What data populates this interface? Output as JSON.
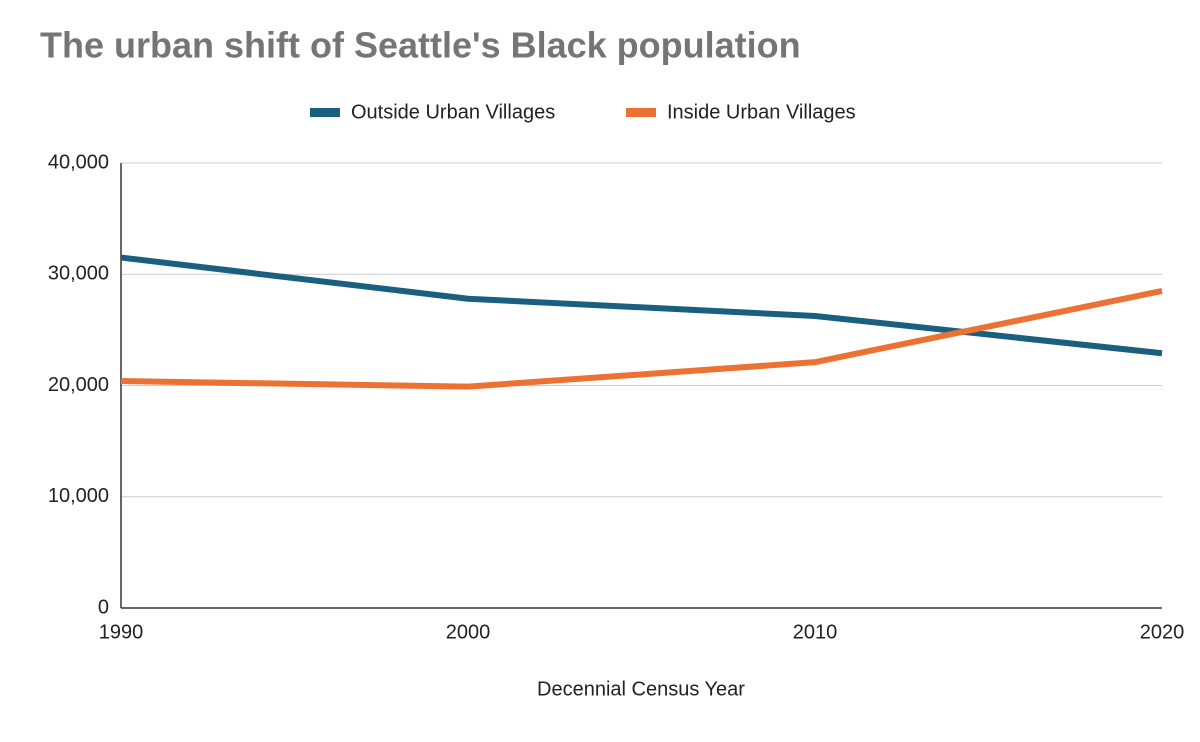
{
  "chart_data": {
    "type": "line",
    "title": "The urban shift of Seattle's Black population",
    "x_label": "Decennial Census Year",
    "x": [
      1990,
      2000,
      2010,
      2020
    ],
    "xlim": [
      1990,
      2020
    ],
    "xticks": [
      1990,
      2000,
      2010,
      2020
    ],
    "ylim": [
      0,
      40000
    ],
    "yticks": [
      0,
      {
        "value": 10000,
        "label": "10,000"
      },
      {
        "value": 20000,
        "label": "20,000"
      },
      {
        "value": 30000,
        "label": "30,000"
      },
      {
        "value": 40000,
        "label": "40,000"
      }
    ],
    "grid": true,
    "legend": "top",
    "series": [
      {
        "name": "Outside Urban Villages",
        "color": "#1b5f7e",
        "values": [
          31500,
          27800,
          26250,
          22900
        ]
      },
      {
        "name": "Inside Urban Villages",
        "color": "#ec7234",
        "values": [
          20400,
          19900,
          22100,
          28500
        ]
      }
    ]
  }
}
